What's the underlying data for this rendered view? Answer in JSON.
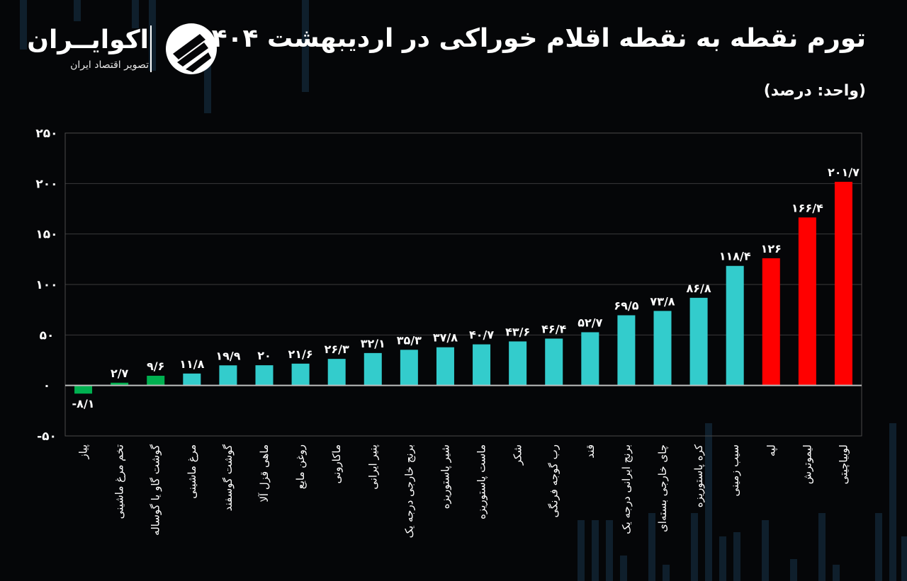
{
  "header": {
    "title": "تورم نقطه به نقطه اقلام خوراکی در اردیبهشت ۱۴۰۴",
    "unit": "(واحد: درصد)"
  },
  "logo": {
    "name": "اکوایــران",
    "subtitle": "تصویر اقتصاد ایران",
    "icon": "ecoiran-logo-icon"
  },
  "colors": {
    "negative": "#00b050",
    "low": "#00b050",
    "mid": "#33cccc",
    "high": "#ff0000",
    "background": "#050608"
  },
  "chart_data": {
    "type": "bar",
    "categories": [
      "پیاز",
      "تخم مرغ ماشینی",
      "گوشت گاو یا گوساله",
      "مرغ ماشینی",
      "گوشت گوسفند",
      "ماهی قزل آلا",
      "روغن مایع",
      "ماکارونی",
      "پنیر ایرانی",
      "برنج خارجی درجه یک",
      "شیر پاستوریزه",
      "ماست پاستوریزه",
      "شکر",
      "رب گوجه فرنگی",
      "قند",
      "برنج ایرانی درجه یک",
      "چای خارجی بسته‌ای",
      "کره پاستوریزه",
      "سیب زمینی",
      "لپه",
      "لیموترش",
      "لوبیاچیتی"
    ],
    "values": [
      -8.1,
      2.7,
      9.6,
      11.8,
      19.9,
      20,
      21.6,
      26.3,
      32.1,
      35.3,
      37.8,
      40.7,
      43.6,
      46.4,
      52.7,
      69.5,
      73.8,
      86.8,
      118.4,
      126,
      166.4,
      201.7
    ],
    "value_labels": [
      "-۸/۱",
      "۲/۷",
      "۹/۶",
      "۱۱/۸",
      "۱۹/۹",
      "۲۰",
      "۲۱/۶",
      "۲۶/۳",
      "۳۲/۱",
      "۳۵/۳",
      "۳۷/۸",
      "۴۰/۷",
      "۴۳/۶",
      "۴۶/۴",
      "۵۲/۷",
      "۶۹/۵",
      "۷۳/۸",
      "۸۶/۸",
      "۱۱۸/۴",
      "۱۲۶",
      "۱۶۶/۴",
      "۲۰۱/۷"
    ],
    "bar_colors": [
      "#00b050",
      "#00b050",
      "#00b050",
      "#33cccc",
      "#33cccc",
      "#33cccc",
      "#33cccc",
      "#33cccc",
      "#33cccc",
      "#33cccc",
      "#33cccc",
      "#33cccc",
      "#33cccc",
      "#33cccc",
      "#33cccc",
      "#33cccc",
      "#33cccc",
      "#33cccc",
      "#33cccc",
      "#ff0000",
      "#ff0000",
      "#ff0000"
    ],
    "yticks": [
      250,
      200,
      150,
      100,
      50,
      0,
      -50
    ],
    "ytick_labels": [
      "۲۵۰",
      "۲۰۰",
      "۱۵۰",
      "۱۰۰",
      "۵۰",
      "۰",
      "-۵۰"
    ],
    "ylim": [
      -50,
      250
    ],
    "grid": true,
    "legend": "none"
  }
}
